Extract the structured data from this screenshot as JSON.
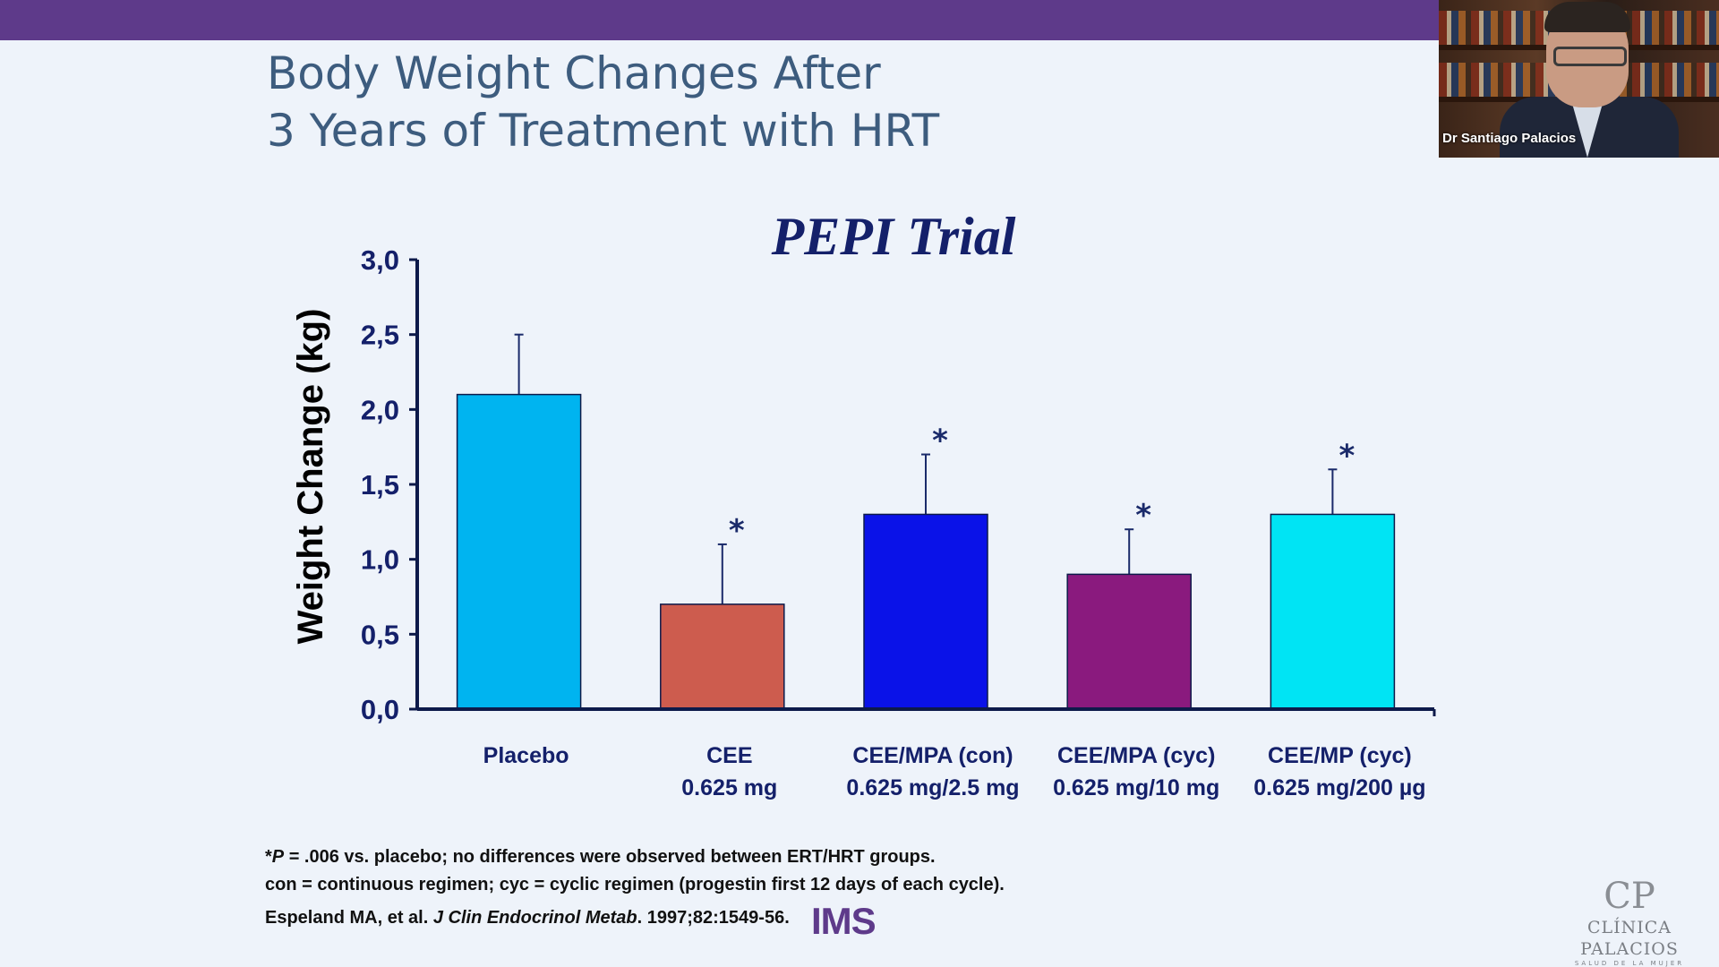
{
  "slide": {
    "title_line1": "Body Weight Changes After",
    "title_line2": "3 Years of Treatment with HRT",
    "footnote_asterisk": "*",
    "footnote_p": "P",
    "footnote1_rest": " = .006 vs. placebo; no differences were observed between ERT/HRT groups.",
    "footnote2": "con = continuous regimen; cyc = cyclic regimen (progestin first 12 days of each cycle).",
    "ref_authors": "Espeland MA, et al. ",
    "ref_journal": "J Clin Endocrinol Metab",
    "ref_rest": ". 1997;82:1549-56."
  },
  "logos": {
    "ims": "IMS",
    "clinic_mark": "CP",
    "clinic_name": "CLÍNICA PALACIOS",
    "clinic_tagline": "SALUD DE LA MUJER"
  },
  "webcam": {
    "speaker_name": "Dr Santiago Palacios"
  },
  "chart_data": {
    "type": "bar",
    "title": "PEPI Trial",
    "xlabel": "",
    "ylabel": "Weight Change (kg)",
    "ylim": [
      0,
      3
    ],
    "yticks": [
      "0,0",
      "0,5",
      "1,0",
      "1,5",
      "2,0",
      "2,5",
      "3,0"
    ],
    "grid": false,
    "categories": [
      {
        "line1": "Placebo",
        "line2": ""
      },
      {
        "line1": "CEE",
        "line2": "0.625 mg"
      },
      {
        "line1": "CEE/MPA (con)",
        "line2": "0.625 mg/2.5 mg"
      },
      {
        "line1": "CEE/MPA (cyc)",
        "line2": "0.625 mg/10 mg"
      },
      {
        "line1": "CEE/MP (cyc)",
        "line2": "0.625 mg/200 µg"
      }
    ],
    "values": [
      2.1,
      0.7,
      1.3,
      0.9,
      1.3
    ],
    "error_upper": [
      2.5,
      1.1,
      1.7,
      1.2,
      1.6
    ],
    "significance_marks": [
      "",
      "*",
      "*",
      "*",
      "*"
    ],
    "colors": [
      "#00b4f0",
      "#cd5c4e",
      "#0a12e8",
      "#8a1a7e",
      "#00e4f4"
    ]
  }
}
